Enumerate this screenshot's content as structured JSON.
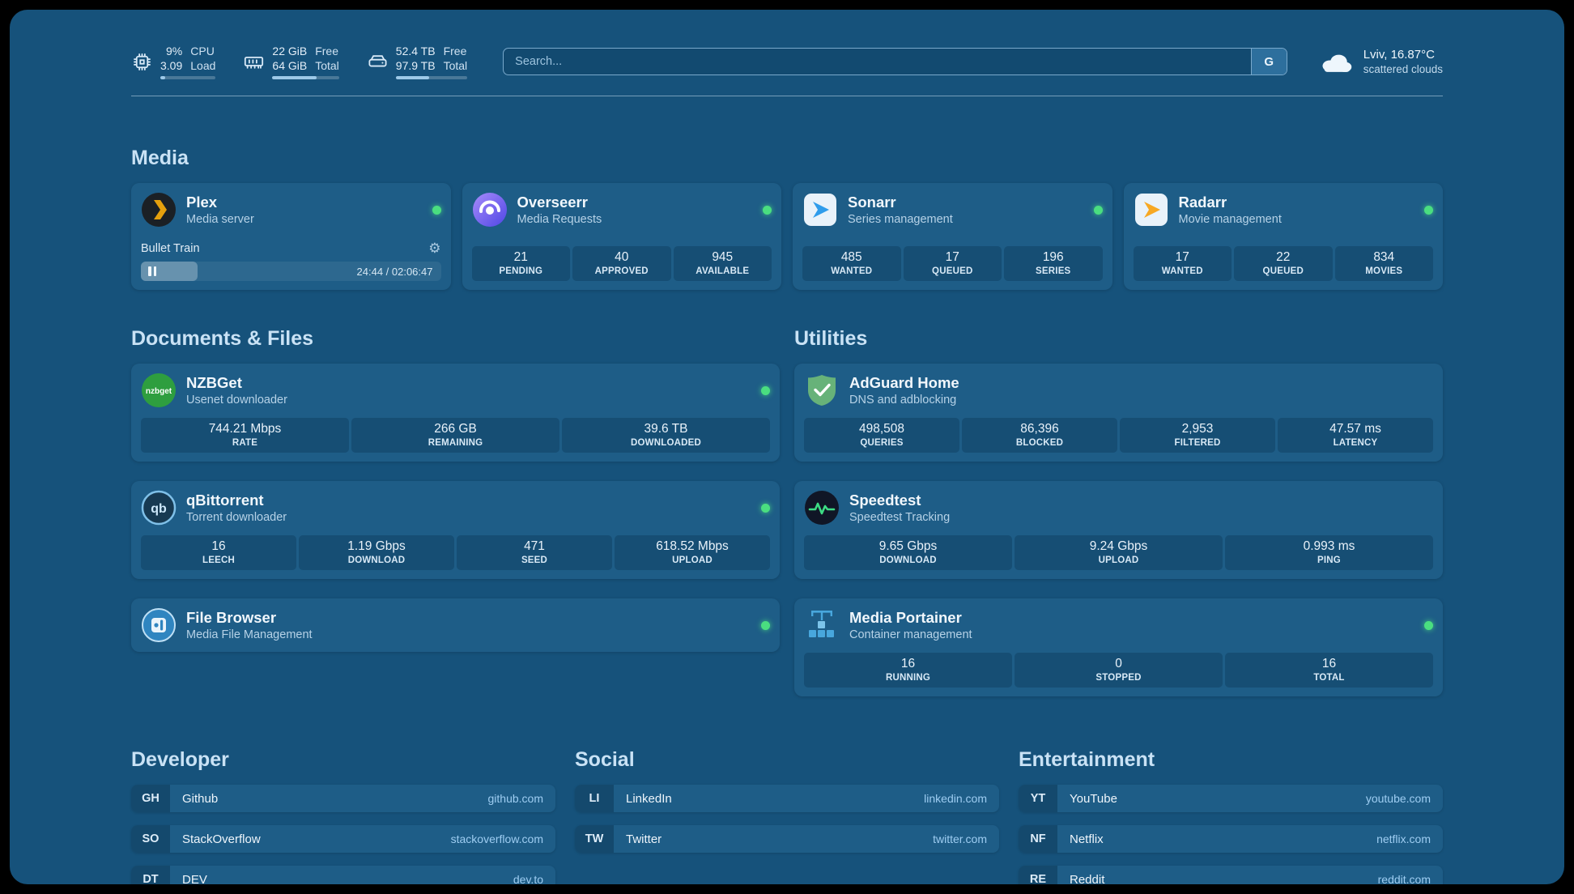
{
  "header": {
    "resources": {
      "cpu": {
        "value_top": "9%",
        "value_bottom": "3.09",
        "label_top": "CPU",
        "label_bottom": "Load",
        "progress_pct": 9
      },
      "memory": {
        "value_top": "22 GiB",
        "value_bottom": "64 GiB",
        "label_top": "Free",
        "label_bottom": "Total",
        "progress_pct": 66
      },
      "disk": {
        "value_top": "52.4 TB",
        "value_bottom": "97.9 TB",
        "label_top": "Free",
        "label_bottom": "Total",
        "progress_pct": 47
      }
    },
    "search": {
      "placeholder": "Search...",
      "provider_label": "G"
    },
    "weather": {
      "location": "Lviv, 16.87°C",
      "condition": "scattered clouds"
    }
  },
  "media": {
    "title": "Media",
    "plex": {
      "name": "Plex",
      "desc": "Media server",
      "now_playing": "Bullet Train",
      "time": "24:44 / 02:06:47",
      "progress_pct": 19
    },
    "overseerr": {
      "name": "Overseerr",
      "desc": "Media Requests",
      "stats": [
        {
          "value": "21",
          "label": "PENDING"
        },
        {
          "value": "40",
          "label": "APPROVED"
        },
        {
          "value": "945",
          "label": "AVAILABLE"
        }
      ]
    },
    "sonarr": {
      "name": "Sonarr",
      "desc": "Series management",
      "stats": [
        {
          "value": "485",
          "label": "WANTED"
        },
        {
          "value": "17",
          "label": "QUEUED"
        },
        {
          "value": "196",
          "label": "SERIES"
        }
      ]
    },
    "radarr": {
      "name": "Radarr",
      "desc": "Movie management",
      "stats": [
        {
          "value": "17",
          "label": "WANTED"
        },
        {
          "value": "22",
          "label": "QUEUED"
        },
        {
          "value": "834",
          "label": "MOVIES"
        }
      ]
    }
  },
  "documents": {
    "title": "Documents & Files",
    "nzbget": {
      "name": "NZBGet",
      "desc": "Usenet downloader",
      "stats": [
        {
          "value": "744.21 Mbps",
          "label": "RATE"
        },
        {
          "value": "266 GB",
          "label": "REMAINING"
        },
        {
          "value": "39.6 TB",
          "label": "DOWNLOADED"
        }
      ]
    },
    "qbittorrent": {
      "name": "qBittorrent",
      "desc": "Torrent downloader",
      "stats": [
        {
          "value": "16",
          "label": "LEECH"
        },
        {
          "value": "1.19 Gbps",
          "label": "DOWNLOAD"
        },
        {
          "value": "471",
          "label": "SEED"
        },
        {
          "value": "618.52 Mbps",
          "label": "UPLOAD"
        }
      ]
    },
    "filebrowser": {
      "name": "File Browser",
      "desc": "Media File Management"
    }
  },
  "utilities": {
    "title": "Utilities",
    "adguard": {
      "name": "AdGuard Home",
      "desc": "DNS and adblocking",
      "stats": [
        {
          "value": "498,508",
          "label": "QUERIES"
        },
        {
          "value": "86,396",
          "label": "BLOCKED"
        },
        {
          "value": "2,953",
          "label": "FILTERED"
        },
        {
          "value": "47.57 ms",
          "label": "LATENCY"
        }
      ]
    },
    "speedtest": {
      "name": "Speedtest",
      "desc": "Speedtest Tracking",
      "stats": [
        {
          "value": "9.65 Gbps",
          "label": "DOWNLOAD"
        },
        {
          "value": "9.24 Gbps",
          "label": "UPLOAD"
        },
        {
          "value": "0.993 ms",
          "label": "PING"
        }
      ]
    },
    "portainer": {
      "name": "Media Portainer",
      "desc": "Container management",
      "stats": [
        {
          "value": "16",
          "label": "RUNNING"
        },
        {
          "value": "0",
          "label": "STOPPED"
        },
        {
          "value": "16",
          "label": "TOTAL"
        }
      ]
    }
  },
  "bookmarks": {
    "developer": {
      "title": "Developer",
      "items": [
        {
          "abbr": "GH",
          "name": "Github",
          "url": "github.com"
        },
        {
          "abbr": "SO",
          "name": "StackOverflow",
          "url": "stackoverflow.com"
        },
        {
          "abbr": "DT",
          "name": "DEV",
          "url": "dev.to"
        }
      ]
    },
    "social": {
      "title": "Social",
      "items": [
        {
          "abbr": "LI",
          "name": "LinkedIn",
          "url": "linkedin.com"
        },
        {
          "abbr": "TW",
          "name": "Twitter",
          "url": "twitter.com"
        }
      ]
    },
    "entertainment": {
      "title": "Entertainment",
      "items": [
        {
          "abbr": "YT",
          "name": "YouTube",
          "url": "youtube.com"
        },
        {
          "abbr": "NF",
          "name": "Netflix",
          "url": "netflix.com"
        },
        {
          "abbr": "RE",
          "name": "Reddit",
          "url": "reddit.com"
        }
      ]
    }
  }
}
